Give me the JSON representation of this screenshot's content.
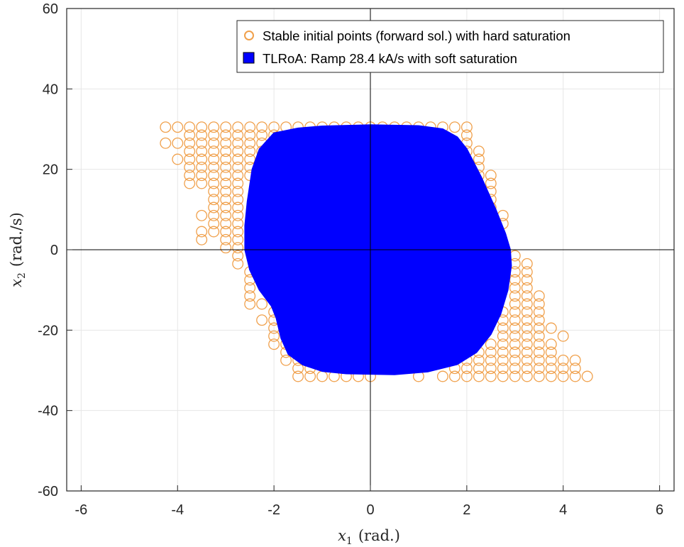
{
  "chart_data": {
    "type": "scatter",
    "xlabel_sym": "x",
    "xlabel_sub": "1",
    "xlabel_unit": "(rad.)",
    "ylabel_sym": "x",
    "ylabel_sub": "2",
    "ylabel_unit": "(rad./s)",
    "xlim": [
      -6.3,
      6.3
    ],
    "ylim": [
      -60,
      60
    ],
    "xticks": [
      -6,
      -4,
      -2,
      0,
      2,
      4,
      6
    ],
    "yticks": [
      -60,
      -40,
      -20,
      0,
      20,
      40,
      60
    ],
    "grid": true,
    "legend_position": "top-right",
    "colors": {
      "points": "#f0a04b",
      "region": "#0000ff",
      "axes": "#262626",
      "grid": "#e6e6e6"
    },
    "series": [
      {
        "name": "Stable initial points (forward sol.) with hard saturation",
        "kind": "scatter",
        "marker": "circle-open",
        "rows": [
          {
            "y": 30.5,
            "x": [
              -4.25,
              -4.0,
              -3.75,
              -3.5,
              -3.25,
              -3.0,
              -2.75,
              -2.5,
              -2.25,
              -2.0,
              -1.75,
              -1.5,
              -1.25,
              -1.0,
              -0.75,
              -0.5,
              -0.25,
              0.0,
              0.25,
              0.5,
              0.75,
              1.0,
              1.25,
              1.5,
              1.75,
              2.0
            ]
          },
          {
            "y": 28.5,
            "x": [
              -3.75,
              -3.5,
              -3.25,
              -3.0,
              -2.75,
              -2.5,
              -2.25,
              -2.0,
              2.0
            ]
          },
          {
            "y": 26.5,
            "x": [
              -4.25,
              -4.0,
              -3.75,
              -3.5,
              -3.25,
              -3.0,
              -2.75,
              -2.5,
              -2.25,
              2.0
            ]
          },
          {
            "y": 24.5,
            "x": [
              -3.75,
              -3.5,
              -3.25,
              -3.0,
              -2.75,
              -2.5,
              -2.25,
              2.0,
              2.25
            ]
          },
          {
            "y": 22.5,
            "x": [
              -4.0,
              -3.75,
              -3.5,
              -3.25,
              -3.0,
              -2.75,
              -2.5,
              2.25
            ]
          },
          {
            "y": 20.5,
            "x": [
              -3.75,
              -3.5,
              -3.25,
              -3.0,
              -2.75,
              -2.5,
              2.25
            ]
          },
          {
            "y": 18.5,
            "x": [
              -3.75,
              -3.5,
              -3.25,
              -3.0,
              -2.75,
              -2.5,
              2.25,
              2.5
            ]
          },
          {
            "y": 16.5,
            "x": [
              -3.75,
              -3.5,
              -3.25,
              -3.0,
              -2.75,
              2.5
            ]
          },
          {
            "y": 14.5,
            "x": [
              -3.25,
              -3.0,
              -2.75,
              2.5
            ]
          },
          {
            "y": 12.5,
            "x": [
              -3.25,
              -3.0,
              -2.75,
              2.5
            ]
          },
          {
            "y": 10.5,
            "x": [
              -3.25,
              -3.0,
              -2.75,
              2.5
            ]
          },
          {
            "y": 8.5,
            "x": [
              -3.5,
              -3.25,
              -3.0,
              -2.75,
              2.75
            ]
          },
          {
            "y": 6.5,
            "x": [
              -3.25,
              -3.0,
              -2.75,
              2.75
            ]
          },
          {
            "y": 4.5,
            "x": [
              -3.5,
              -3.25,
              -3.0,
              -2.75
            ]
          },
          {
            "y": 2.5,
            "x": [
              -3.5,
              -3.0,
              -2.75
            ]
          },
          {
            "y": 0.5,
            "x": [
              -3.0,
              -2.75
            ]
          },
          {
            "y": -1.5,
            "x": [
              -2.75,
              3.0
            ]
          },
          {
            "y": -3.5,
            "x": [
              -2.75,
              3.0,
              3.25
            ]
          },
          {
            "y": -5.5,
            "x": [
              -2.5,
              3.0,
              3.25
            ]
          },
          {
            "y": -7.5,
            "x": [
              -2.5,
              3.0,
              3.25
            ]
          },
          {
            "y": -9.5,
            "x": [
              -2.5,
              3.0,
              3.25
            ]
          },
          {
            "y": -11.5,
            "x": [
              -2.5,
              3.0,
              3.25,
              3.5
            ]
          },
          {
            "y": -13.5,
            "x": [
              -2.5,
              -2.25,
              3.0,
              3.25,
              3.5
            ]
          },
          {
            "y": -15.5,
            "x": [
              -2.0,
              2.75,
              3.0,
              3.25,
              3.5
            ]
          },
          {
            "y": -17.5,
            "x": [
              -2.25,
              -2.0,
              2.75,
              3.0,
              3.25,
              3.5
            ]
          },
          {
            "y": -19.5,
            "x": [
              -2.0,
              2.75,
              3.0,
              3.25,
              3.5,
              3.75
            ]
          },
          {
            "y": -21.5,
            "x": [
              -2.0,
              -1.75,
              2.75,
              3.0,
              3.25,
              3.5,
              4.0
            ]
          },
          {
            "y": -23.5,
            "x": [
              -2.0,
              -1.75,
              2.5,
              2.75,
              3.0,
              3.25,
              3.5,
              3.75
            ]
          },
          {
            "y": -25.5,
            "x": [
              -1.75,
              2.25,
              2.5,
              2.75,
              3.0,
              3.25,
              3.5,
              3.75
            ]
          },
          {
            "y": -27.5,
            "x": [
              -1.75,
              -1.5,
              2.0,
              2.25,
              2.5,
              2.75,
              3.0,
              3.25,
              3.5,
              3.75,
              4.0,
              4.25
            ]
          },
          {
            "y": -29.5,
            "x": [
              -1.5,
              -1.25,
              1.75,
              2.0,
              2.25,
              2.5,
              2.75,
              3.0,
              3.25,
              3.5,
              3.75,
              4.0,
              4.25
            ]
          },
          {
            "y": -31.5,
            "x": [
              -1.5,
              -1.25,
              -1.0,
              -0.75,
              -0.5,
              -0.25,
              0.0,
              1.0,
              1.5,
              1.75,
              2.0,
              2.25,
              2.5,
              2.75,
              3.0,
              3.25,
              3.5,
              3.75,
              4.0,
              4.25,
              4.5
            ]
          }
        ]
      },
      {
        "name": "TLRoA: Ramp 28.4 kA/s with soft saturation",
        "kind": "filled-region",
        "boundary": [
          [
            -2.0,
            29.0
          ],
          [
            -1.5,
            30.2
          ],
          [
            -1.0,
            30.7
          ],
          [
            0.0,
            31.0
          ],
          [
            1.0,
            30.8
          ],
          [
            1.5,
            30.0
          ],
          [
            1.8,
            28.0
          ],
          [
            2.0,
            25.0
          ],
          [
            2.3,
            18.0
          ],
          [
            2.6,
            10.0
          ],
          [
            2.8,
            4.0
          ],
          [
            2.9,
            0.0
          ],
          [
            2.92,
            -4.0
          ],
          [
            2.85,
            -10.0
          ],
          [
            2.7,
            -16.0
          ],
          [
            2.5,
            -21.0
          ],
          [
            2.2,
            -25.5
          ],
          [
            1.8,
            -28.5
          ],
          [
            1.2,
            -30.3
          ],
          [
            0.5,
            -31.0
          ],
          [
            -0.5,
            -30.8
          ],
          [
            -1.0,
            -30.2
          ],
          [
            -1.4,
            -28.6
          ],
          [
            -1.7,
            -26.0
          ],
          [
            -1.85,
            -22.0
          ],
          [
            -1.95,
            -17.0
          ],
          [
            -2.05,
            -14.0
          ],
          [
            -2.3,
            -10.0
          ],
          [
            -2.5,
            -5.0
          ],
          [
            -2.6,
            0.0
          ],
          [
            -2.6,
            6.0
          ],
          [
            -2.55,
            12.0
          ],
          [
            -2.45,
            20.0
          ],
          [
            -2.3,
            25.0
          ]
        ]
      }
    ]
  }
}
